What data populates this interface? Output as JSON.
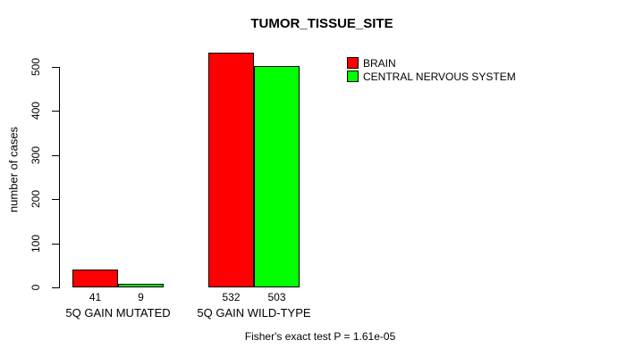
{
  "chart_data": {
    "type": "bar",
    "title": "TUMOR_TISSUE_SITE",
    "xlabel": "",
    "ylabel": "number of cases",
    "categories": [
      "5Q GAIN MUTATED",
      "5Q GAIN WILD-TYPE"
    ],
    "series": [
      {
        "name": "BRAIN",
        "color": "#ff0000",
        "values": [
          41,
          532
        ]
      },
      {
        "name": "CENTRAL NERVOUS SYSTEM",
        "color": "#00ff00",
        "values": [
          9,
          503
        ]
      }
    ],
    "ylim": [
      0,
      500
    ],
    "yticks": [
      0,
      100,
      200,
      300,
      400,
      500
    ],
    "grid": false,
    "legend_position": "top-right",
    "bar_border_color": "#000000",
    "value_labels_shown": true,
    "annotation": "Fisher's exact test P = 1.61e-05"
  }
}
